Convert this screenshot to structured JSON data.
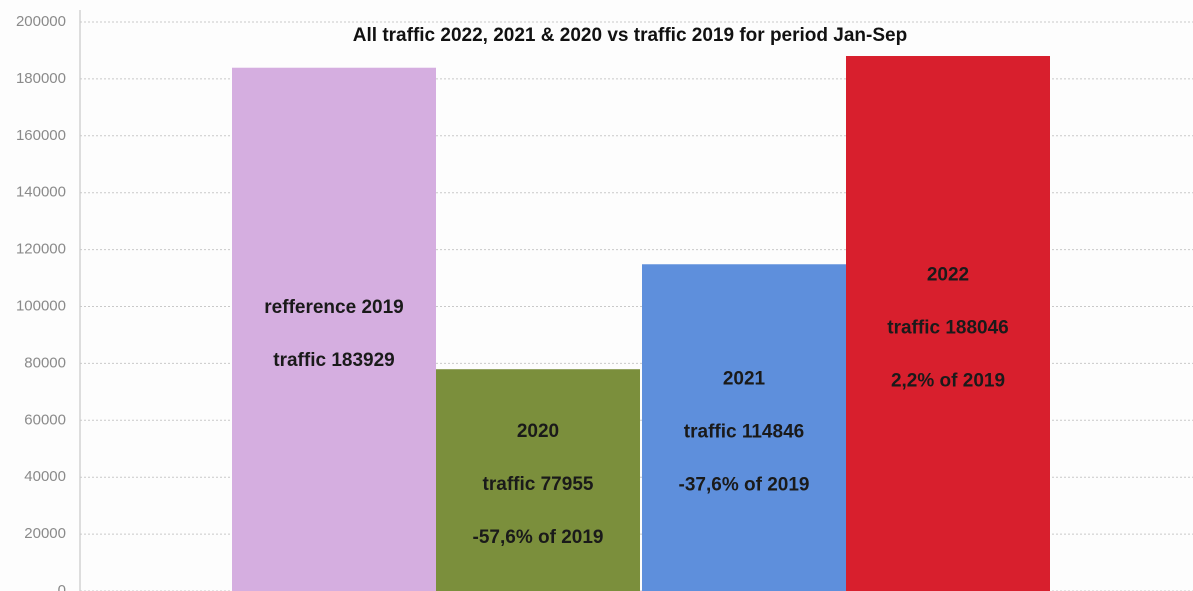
{
  "chart_data": {
    "type": "bar",
    "title": "All traffic 2022, 2021 & 2020 vs traffic 2019 for period Jan-Sep",
    "categories": [
      "refference 2019",
      "2020",
      "2021",
      "2022"
    ],
    "values": [
      183929,
      77955,
      114846,
      188046
    ],
    "value_labels": [
      "traffic 183929",
      "traffic 77955",
      "traffic 114846",
      "traffic 188046"
    ],
    "percent_labels": [
      null,
      "-57,6% of 2019",
      "-37,6% of 2019",
      "2,2% of 2019"
    ],
    "colors": [
      "#d5aee0",
      "#7b8f3c",
      "#5e8fdc",
      "#d81f2d"
    ],
    "ylim": [
      0,
      200000
    ],
    "yticks": [
      0,
      20000,
      40000,
      60000,
      80000,
      100000,
      120000,
      140000,
      160000,
      180000,
      200000
    ],
    "grid": true
  }
}
